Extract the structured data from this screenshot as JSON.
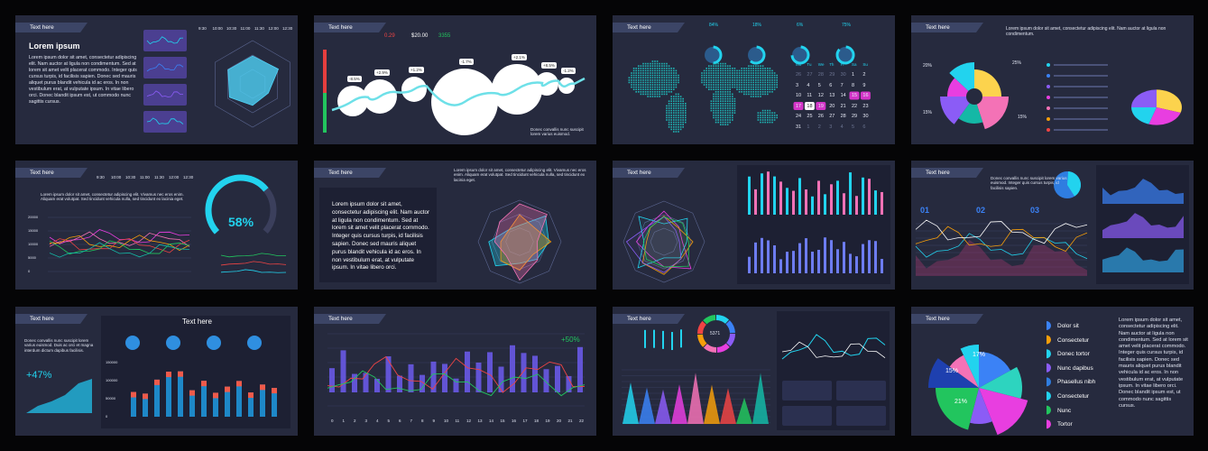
{
  "panels": [
    {
      "tab": "Text here",
      "heading": "Lorem ipsum",
      "paragraph": "Lorem ipsum dolor sit amet, consectetur adipiscing elit. Nam auctor at ligula non condimentum. Sed at lorem sit amet velit placerat commodo. Integer quis cursus turpis, id facilisis sapien. Donec sed mauris aliquet purus blandit vehicula id ac eros. In non vestibulum erat, at vulputate ipsum. In vitae libero orci. Donec blandit ipsum est, ut commodo nunc sagittis cursus.",
      "times": [
        "9:30",
        "10:00",
        "10:30",
        "11:00",
        "11:30",
        "12:00",
        "12:30"
      ]
    },
    {
      "tab": "Text here",
      "stats": [
        "0.29",
        "$20.00",
        "3355"
      ],
      "bubbles": [
        "-8.5%",
        "+2.9%",
        "+1.2%",
        "-1.7%",
        "+2.1%",
        "+8.5%",
        "-1.2%"
      ],
      "note": "Donec convallis nunc suscipit lorem varius euismod."
    },
    {
      "tab": "Text here",
      "percents": [
        "84%",
        "18%",
        "6%",
        "75%"
      ],
      "weekdays": [
        "Mo",
        "Tu",
        "We",
        "Th",
        "Fr",
        "Sa",
        "Su"
      ],
      "days": [
        26,
        27,
        28,
        29,
        30,
        1,
        2,
        3,
        4,
        5,
        6,
        7,
        8,
        9,
        10,
        11,
        12,
        13,
        14,
        15,
        16,
        17,
        18,
        19,
        20,
        21,
        22,
        23,
        24,
        25,
        26,
        27,
        28,
        29,
        30,
        31,
        1,
        2,
        3,
        4,
        5,
        6
      ]
    },
    {
      "tab": "Text here",
      "paragraph": "Lorem ipsum dolor sit amet, consectetur adipiscing elit. Nam auctor at ligula non condimentum.",
      "percents": [
        "20%",
        "25%",
        "15%",
        "15%"
      ]
    },
    {
      "tab": "Text here",
      "times": [
        "9:30",
        "10:00",
        "10:30",
        "11:00",
        "11:30",
        "12:00",
        "12:30"
      ],
      "paragraph": "Lorem ipsum dolor sit amet, consectetur adipiscing elit. Vivamus nec eros enim. Aliquam erat volutpat. Sed tincidunt vehicula nulla, sed tincidunt ex lacinia eget.",
      "axis": [
        "20000",
        "15000",
        "10000",
        "5000",
        "0"
      ],
      "gauge": "58%"
    },
    {
      "tab": "Text here",
      "caption": "Lorem ipsum dolor sit amet, consectetur adipiscing elit. Vivamus nec eros enim. Aliquam erat volutpat. Sed tincidunt vehicula nulla, sed tincidunt ex lacinia eget.",
      "paragraph": "Lorem ipsum dolor sit amet, consectetur adipiscing elit. Nam auctor at ligula non condimentum. Sed at lorem sit amet velit placerat commodo. Integer quis cursus turpis, id facilisis sapien. Donec sed mauris aliquet purus blandit vehicula id ac eros. In non vestibulum erat, at vulputate ipsum. In vitae libero orci."
    },
    {
      "tab": "Text here"
    },
    {
      "tab": "Text here",
      "paragraph": "Donec convallis nunc suscipit lorem varius euismod. Integer quis cursus turpis, id facilisis sapien.",
      "steps": [
        "01",
        "02",
        "03"
      ]
    },
    {
      "tab": "Text here",
      "title": "Text here",
      "paragraph": "Donec convallis nunc suscipit lorem varius euismod. Duis ac orci et magna interdum dictum dapibus facilisis.",
      "growth": "+47%",
      "axis": [
        "150000",
        "100000",
        "50000",
        "0"
      ]
    },
    {
      "tab": "Text here",
      "growth": "+50%",
      "xlabels": [
        0,
        1,
        2,
        3,
        4,
        5,
        6,
        7,
        8,
        9,
        10,
        11,
        12,
        13,
        14,
        15,
        16,
        17,
        18,
        19,
        20,
        21,
        22
      ]
    },
    {
      "tab": "Text here",
      "center": "5371"
    },
    {
      "tab": "Text here",
      "percents": [
        "17%",
        "15%",
        "21%"
      ],
      "legend": [
        "Dolor sit",
        "Consectetur",
        "Donec tortor",
        "Nunc dapibus",
        "Phasellus nibh",
        "Consectetur",
        "Nunc",
        "Tortor"
      ],
      "paragraph": "Lorem ipsum dolor sit amet, consectetur adipiscing elit. Nam auctor at ligula non condimentum. Sed at lorem sit amet velit placerat commodo. Integer quis cursus turpis, id facilisis sapien. Donec sed mauris aliquet purus blandit vehicula id ac eros. In non vestibulum erat, at vulputate ipsum. In vitae libero orci. Donec blandit ipsum est, ut commodo nunc sagittis cursus."
    }
  ]
}
